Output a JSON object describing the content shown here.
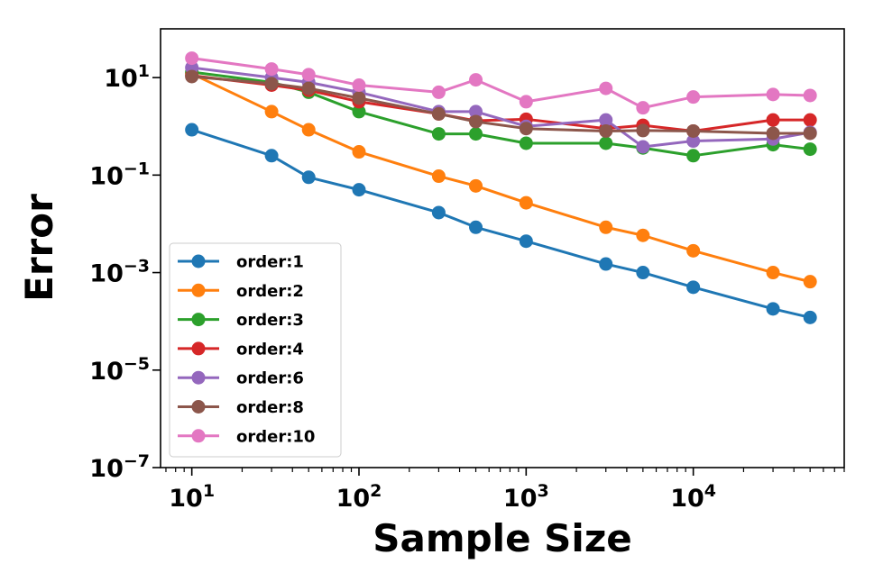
{
  "chart_data": {
    "type": "line",
    "xlabel": "Sample Size",
    "ylabel": "Error",
    "xscale": "log",
    "yscale": "log",
    "xlim": [
      6.5,
      80000
    ],
    "ylim": [
      1e-07,
      100
    ],
    "xticks": [
      {
        "base": "10",
        "exp": "1",
        "value": 10
      },
      {
        "base": "10",
        "exp": "2",
        "value": 100
      },
      {
        "base": "10",
        "exp": "3",
        "value": 1000
      },
      {
        "base": "10",
        "exp": "4",
        "value": 10000
      }
    ],
    "yticks": [
      {
        "base": "10",
        "exp": "−7",
        "value": 1e-07
      },
      {
        "base": "10",
        "exp": "−5",
        "value": 1e-05
      },
      {
        "base": "10",
        "exp": "−3",
        "value": 0.001
      },
      {
        "base": "10",
        "exp": "−1",
        "value": 0.1
      },
      {
        "base": "10",
        "exp": "1",
        "value": 10
      }
    ],
    "legend_position": "lower-left",
    "x": [
      10,
      30,
      50,
      100,
      300,
      500,
      1000,
      3000,
      5000,
      10000,
      30000,
      50000
    ],
    "series": [
      {
        "name": "order:1",
        "color": "#1f77b4",
        "values": [
          0.85,
          0.25,
          0.09,
          0.05,
          0.017,
          0.0085,
          0.0044,
          0.0015,
          0.001,
          0.0005,
          0.00018,
          0.00012
        ]
      },
      {
        "name": "order:2",
        "color": "#ff7f0e",
        "values": [
          12,
          2.0,
          0.85,
          0.3,
          0.095,
          0.06,
          0.027,
          0.0085,
          0.0058,
          0.0028,
          0.001,
          0.00065
        ]
      },
      {
        "name": "order:3",
        "color": "#2ca02c",
        "values": [
          13,
          8,
          5,
          2.0,
          0.7,
          0.7,
          0.45,
          0.45,
          0.36,
          0.25,
          0.42,
          0.34
        ]
      },
      {
        "name": "order:4",
        "color": "#d62728",
        "values": [
          11,
          7,
          5.5,
          3.2,
          1.8,
          1.3,
          1.4,
          0.9,
          1.05,
          0.8,
          1.35,
          1.35
        ]
      },
      {
        "name": "order:6",
        "color": "#9467bd",
        "values": [
          16,
          10,
          8,
          5,
          2.0,
          2.0,
          1.0,
          1.35,
          0.38,
          0.5,
          0.55,
          0.75
        ]
      },
      {
        "name": "order:8",
        "color": "#8c564b",
        "values": [
          10.5,
          7.5,
          6,
          3.8,
          1.8,
          1.25,
          0.9,
          0.8,
          0.82,
          0.8,
          0.72,
          0.72
        ]
      },
      {
        "name": "order:10",
        "color": "#e377c2",
        "values": [
          25,
          15,
          11.5,
          7,
          5,
          9,
          3.2,
          6,
          2.4,
          4,
          4.5,
          4.3
        ]
      }
    ]
  }
}
